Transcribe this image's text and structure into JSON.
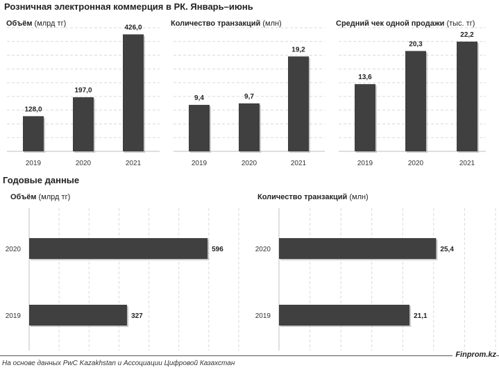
{
  "title": "Розничная электронная коммерция в РК. Январь–июнь",
  "annual_title": "Годовые данные",
  "footer": {
    "source": "На основе данных PwC Kazakhstan и Ассоциации Цифровой Казахстан",
    "brand": "Finprom.kz"
  },
  "colors": {
    "bar": "#404040",
    "grid": "#d9d9d9",
    "axis": "#bfbfbf"
  },
  "chart_data": [
    {
      "type": "bar",
      "title_bold": "Объём",
      "title_unit": " (млрд тг)",
      "categories": [
        "2019",
        "2020",
        "2021"
      ],
      "values": [
        128.0,
        197.0,
        426.0
      ],
      "labels": [
        "128,0",
        "197,0",
        "426,0"
      ],
      "ylim": [
        0,
        450
      ],
      "grid": true
    },
    {
      "type": "bar",
      "title_bold": "Количество транзакций",
      "title_unit": " (млн)",
      "categories": [
        "2019",
        "2020",
        "2021"
      ],
      "values": [
        9.4,
        9.7,
        19.2
      ],
      "labels": [
        "9,4",
        "9,7",
        "19,2"
      ],
      "ylim": [
        0,
        25
      ],
      "grid": true
    },
    {
      "type": "bar",
      "title_bold": "Средний чек одной продажи",
      "title_unit": " (тыс. тг)",
      "categories": [
        "2019",
        "2020",
        "2021"
      ],
      "values": [
        13.6,
        20.3,
        22.2
      ],
      "labels": [
        "13,6",
        "20,3",
        "22,2"
      ],
      "ylim": [
        0,
        25
      ],
      "grid": true
    },
    {
      "type": "bar",
      "orientation": "horizontal",
      "title_bold": "Объём",
      "title_unit": " (млрд тг)",
      "categories": [
        "2020",
        "2019"
      ],
      "values": [
        596,
        327
      ],
      "labels": [
        "596",
        "327"
      ],
      "xlim": [
        0,
        700
      ],
      "grid": true
    },
    {
      "type": "bar",
      "orientation": "horizontal",
      "title_bold": "Количество транзакций",
      "title_unit": " (млн)",
      "categories": [
        "2020",
        "2019"
      ],
      "values": [
        25.4,
        21.1
      ],
      "labels": [
        "25,4",
        "21,1"
      ],
      "xlim": [
        0,
        35
      ],
      "grid": true
    }
  ]
}
